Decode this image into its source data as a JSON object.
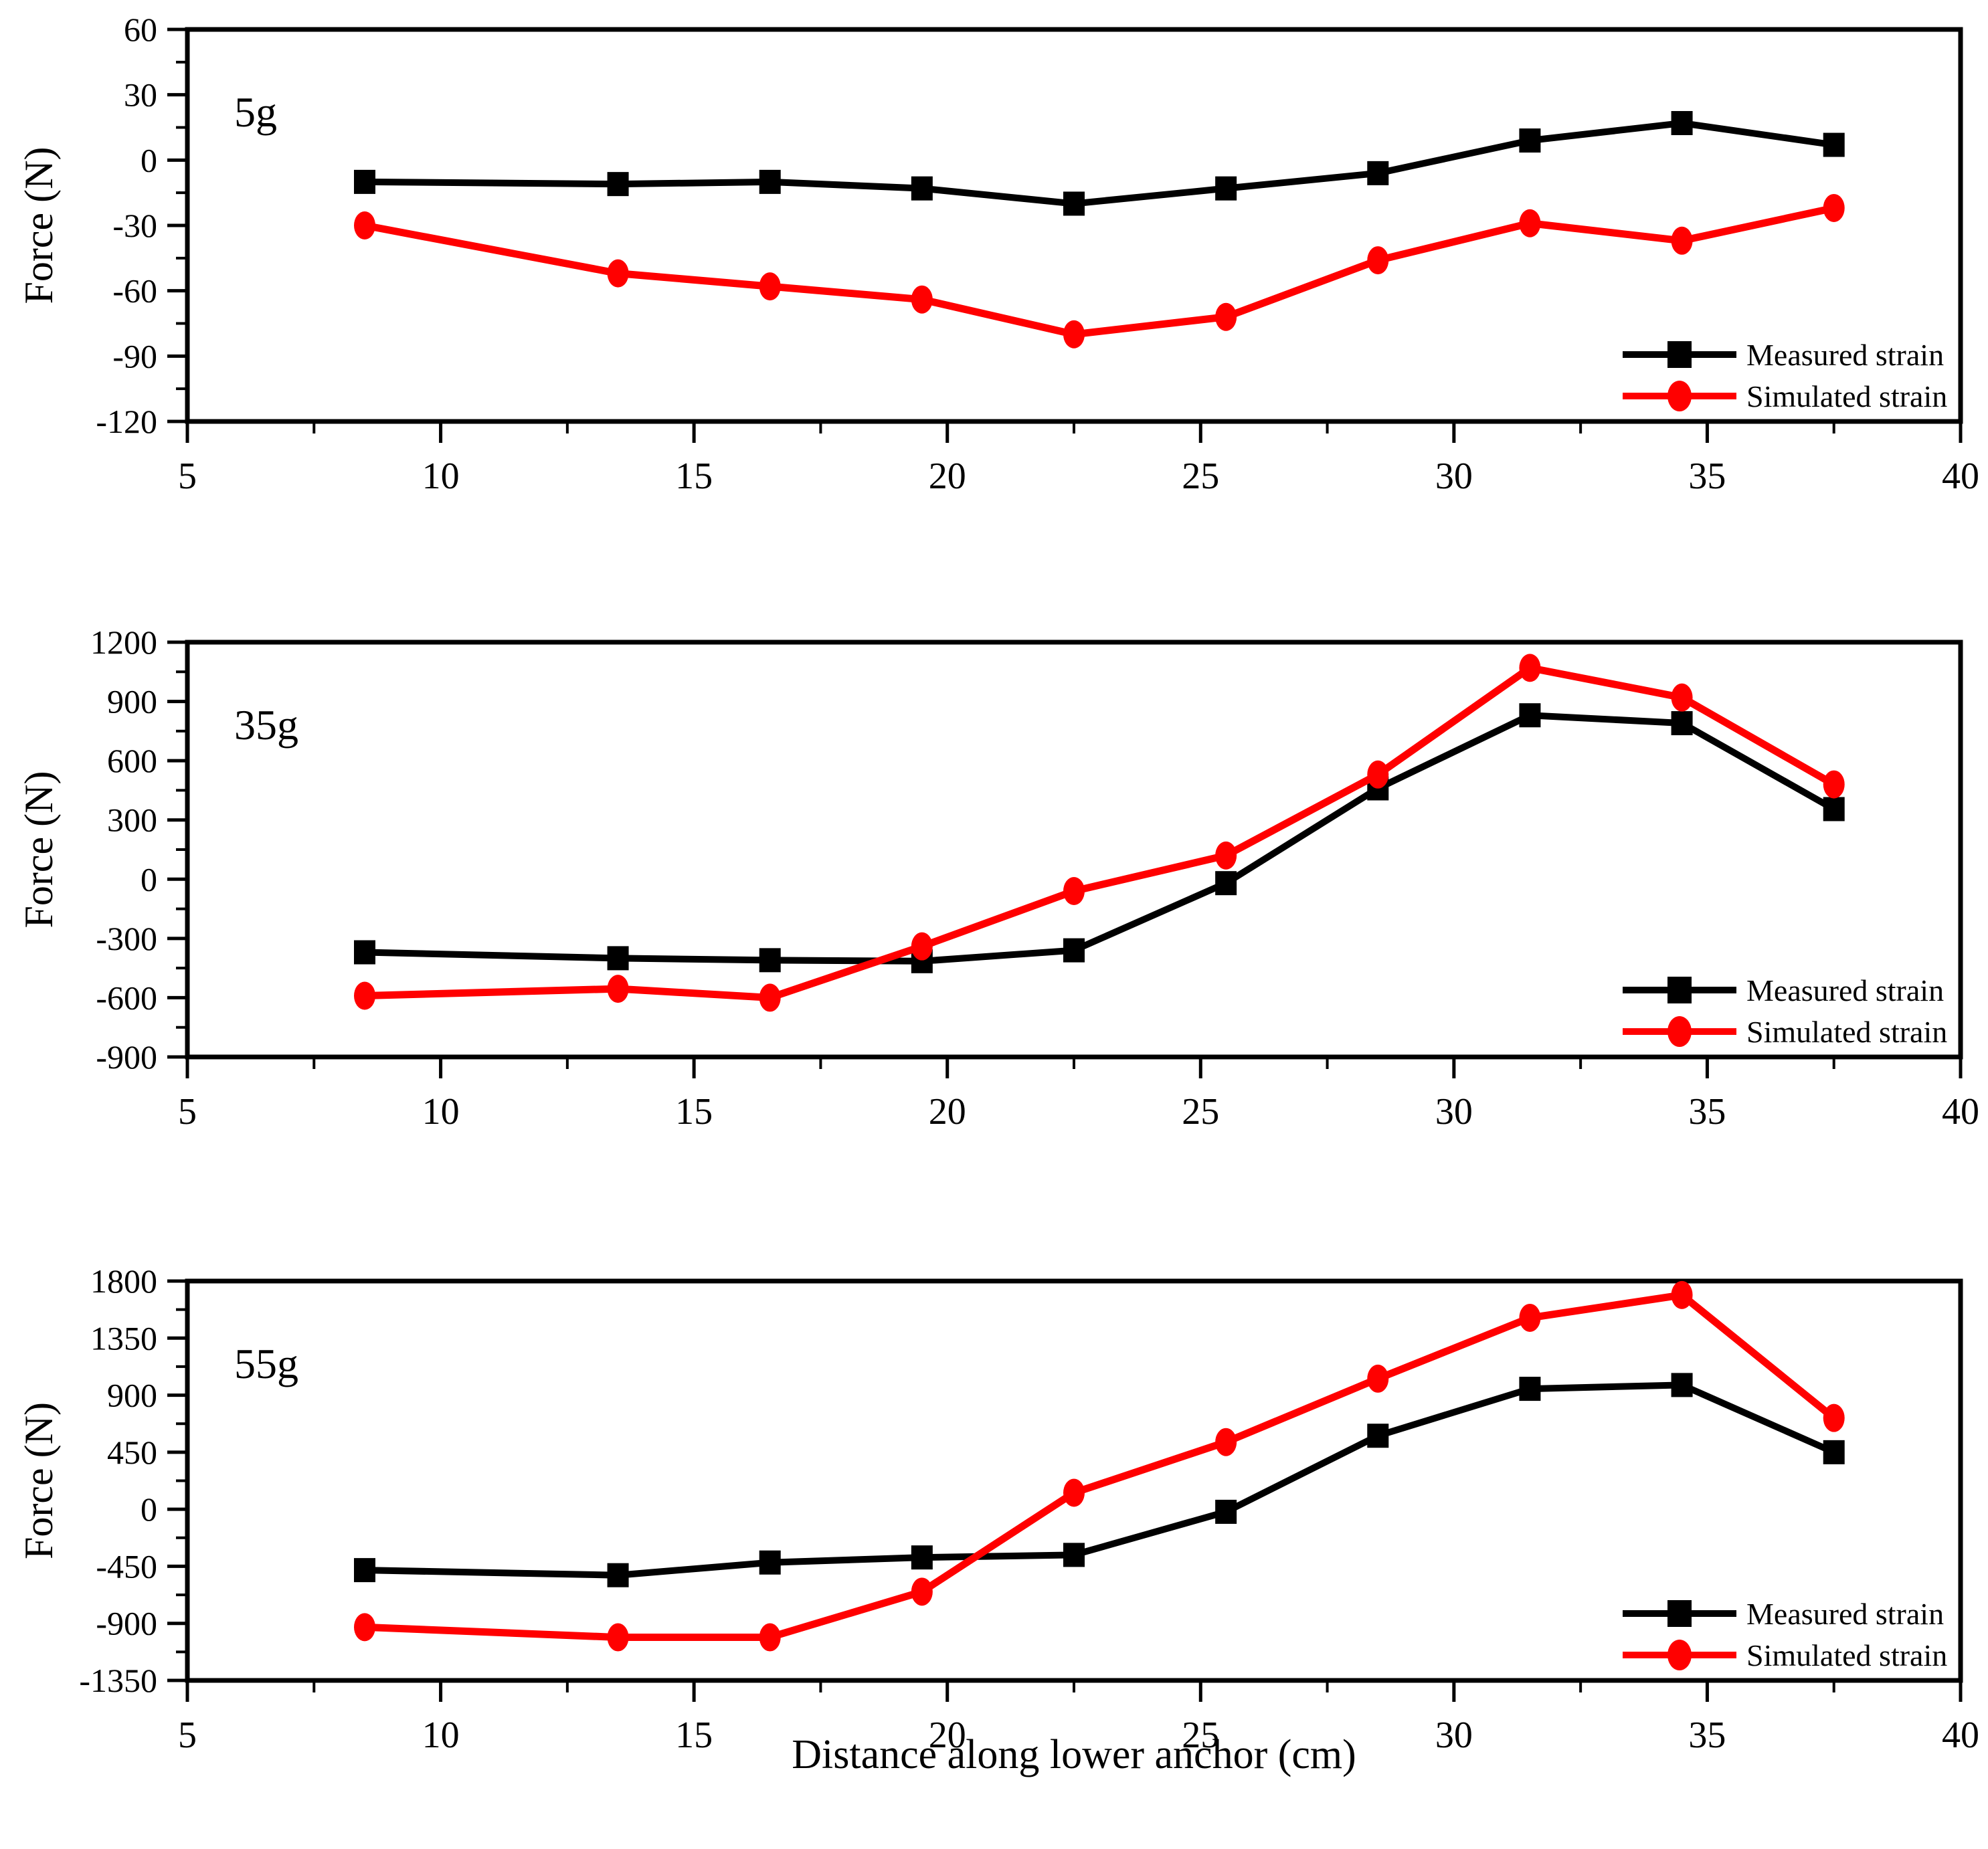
{
  "figure": {
    "xlabel": "Distance along lower anchor (cm)",
    "ylabel": "Force (N)",
    "legend_labels": [
      "Measured strain",
      "Simulated strain"
    ],
    "colors": {
      "measured": "#000000",
      "simulated": "#ff0000"
    }
  },
  "chart_data": [
    {
      "type": "line",
      "panel_label": "5g",
      "xlabel": "Distance along lower anchor (cm)",
      "ylabel": "Force (N)",
      "xlim": [
        5,
        40
      ],
      "xtick_step": 5,
      "ylim": [
        -120,
        60
      ],
      "ytick_step": 30,
      "grid": false,
      "legend_position": "lower right",
      "x": [
        8.5,
        13.5,
        16.5,
        19.5,
        22.5,
        25.5,
        28.5,
        31.5,
        34.5,
        37.5
      ],
      "series": [
        {
          "name": "Measured strain",
          "color": "#000000",
          "marker": "square",
          "values": [
            -10,
            -11,
            -10,
            -13,
            -20,
            -13,
            -6,
            9,
            17,
            7
          ]
        },
        {
          "name": "Simulated strain",
          "color": "#ff0000",
          "marker": "circle",
          "values": [
            -30,
            -52,
            -58,
            -64,
            -80,
            -72,
            -46,
            -29,
            -37,
            -22
          ]
        }
      ]
    },
    {
      "type": "line",
      "panel_label": "35g",
      "xlabel": "Distance along lower anchor (cm)",
      "ylabel": "Force (N)",
      "xlim": [
        5,
        40
      ],
      "xtick_step": 5,
      "ylim": [
        -900,
        1200
      ],
      "ytick_step": 300,
      "grid": false,
      "legend_position": "lower right",
      "x": [
        8.5,
        13.5,
        16.5,
        19.5,
        22.5,
        25.5,
        28.5,
        31.5,
        34.5,
        37.5
      ],
      "series": [
        {
          "name": "Measured strain",
          "color": "#000000",
          "marker": "square",
          "values": [
            -370,
            -400,
            -410,
            -415,
            -360,
            -20,
            460,
            830,
            790,
            355
          ]
        },
        {
          "name": "Simulated strain",
          "color": "#ff0000",
          "marker": "circle",
          "values": [
            -590,
            -555,
            -600,
            -340,
            -60,
            120,
            530,
            1070,
            920,
            480
          ]
        }
      ]
    },
    {
      "type": "line",
      "panel_label": "55g",
      "xlabel": "Distance along lower anchor (cm)",
      "ylabel": "Force (N)",
      "xlim": [
        5,
        40
      ],
      "xtick_step": 5,
      "ylim": [
        -1350,
        1800
      ],
      "ytick_step": 450,
      "grid": false,
      "legend_position": "lower right",
      "x": [
        8.5,
        13.5,
        16.5,
        19.5,
        22.5,
        25.5,
        28.5,
        31.5,
        34.5,
        37.5
      ],
      "series": [
        {
          "name": "Measured strain",
          "color": "#000000",
          "marker": "square",
          "values": [
            -480,
            -520,
            -420,
            -380,
            -360,
            -20,
            580,
            950,
            980,
            450
          ]
        },
        {
          "name": "Simulated strain",
          "color": "#ff0000",
          "marker": "circle",
          "values": [
            -930,
            -1010,
            -1010,
            -650,
            130,
            530,
            1030,
            1510,
            1690,
            720
          ]
        }
      ]
    }
  ]
}
